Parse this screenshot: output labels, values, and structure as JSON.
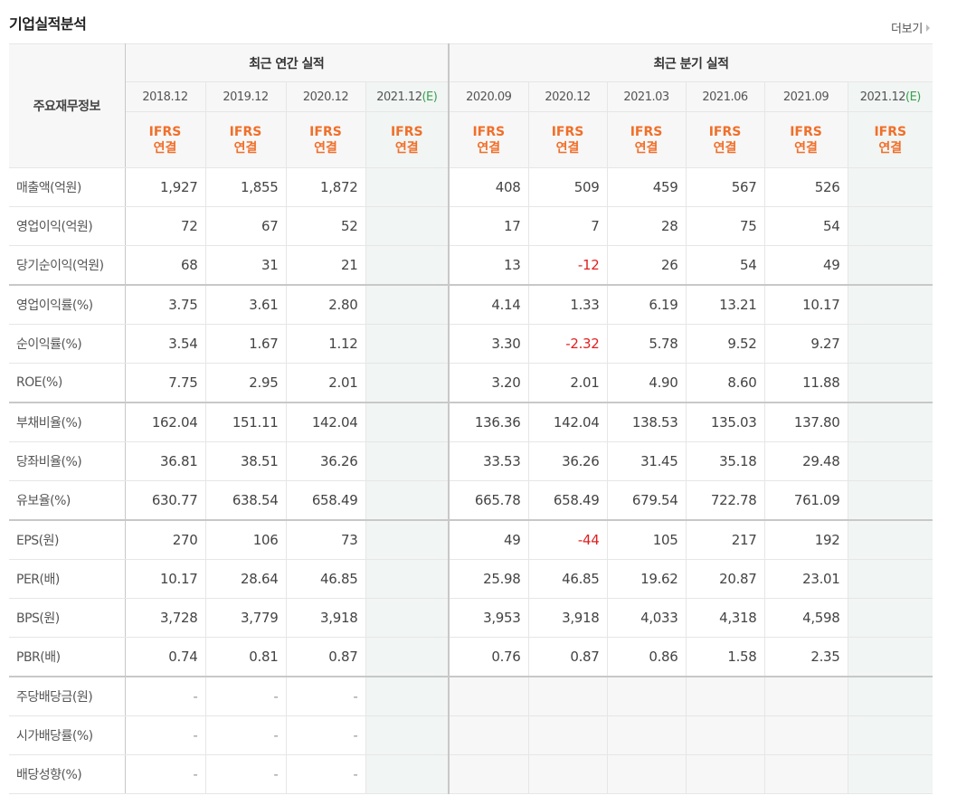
{
  "section": {
    "title": "기업실적분석",
    "more_label": "더보기"
  },
  "table": {
    "row_header_label": "주요재무정보",
    "annual_group_label": "최근 연간 실적",
    "quarterly_group_label": "최근 분기 실적",
    "annual_periods": [
      {
        "date": "2018.12",
        "estimate": ""
      },
      {
        "date": "2019.12",
        "estimate": ""
      },
      {
        "date": "2020.12",
        "estimate": ""
      },
      {
        "date": "2021.12",
        "estimate": "(E)"
      }
    ],
    "quarterly_periods": [
      {
        "date": "2020.09",
        "estimate": ""
      },
      {
        "date": "2020.12",
        "estimate": ""
      },
      {
        "date": "2021.03",
        "estimate": ""
      },
      {
        "date": "2021.06",
        "estimate": ""
      },
      {
        "date": "2021.09",
        "estimate": ""
      },
      {
        "date": "2021.12",
        "estimate": "(E)"
      }
    ],
    "basis_line1": "IFRS",
    "basis_line2": "연결",
    "rows": [
      {
        "label": "매출액(억원)",
        "annual": [
          "1,927",
          "1,855",
          "1,872",
          ""
        ],
        "quarterly": [
          "408",
          "509",
          "459",
          "567",
          "526",
          ""
        ]
      },
      {
        "label": "영업이익(억원)",
        "annual": [
          "72",
          "67",
          "52",
          ""
        ],
        "quarterly": [
          "17",
          "7",
          "28",
          "75",
          "54",
          ""
        ]
      },
      {
        "label": "당기순이익(억원)",
        "annual": [
          "68",
          "31",
          "21",
          ""
        ],
        "quarterly": [
          "13",
          "-12",
          "26",
          "54",
          "49",
          ""
        ]
      },
      {
        "label": "영업이익률(%)",
        "annual": [
          "3.75",
          "3.61",
          "2.80",
          ""
        ],
        "quarterly": [
          "4.14",
          "1.33",
          "6.19",
          "13.21",
          "10.17",
          ""
        ]
      },
      {
        "label": "순이익률(%)",
        "annual": [
          "3.54",
          "1.67",
          "1.12",
          ""
        ],
        "quarterly": [
          "3.30",
          "-2.32",
          "5.78",
          "9.52",
          "9.27",
          ""
        ]
      },
      {
        "label": "ROE(%)",
        "annual": [
          "7.75",
          "2.95",
          "2.01",
          ""
        ],
        "quarterly": [
          "3.20",
          "2.01",
          "4.90",
          "8.60",
          "11.88",
          ""
        ]
      },
      {
        "label": "부채비율(%)",
        "annual": [
          "162.04",
          "151.11",
          "142.04",
          ""
        ],
        "quarterly": [
          "136.36",
          "142.04",
          "138.53",
          "135.03",
          "137.80",
          ""
        ]
      },
      {
        "label": "당좌비율(%)",
        "annual": [
          "36.81",
          "38.51",
          "36.26",
          ""
        ],
        "quarterly": [
          "33.53",
          "36.26",
          "31.45",
          "35.18",
          "29.48",
          ""
        ]
      },
      {
        "label": "유보율(%)",
        "annual": [
          "630.77",
          "638.54",
          "658.49",
          ""
        ],
        "quarterly": [
          "665.78",
          "658.49",
          "679.54",
          "722.78",
          "761.09",
          ""
        ]
      },
      {
        "label": "EPS(원)",
        "annual": [
          "270",
          "106",
          "73",
          ""
        ],
        "quarterly": [
          "49",
          "-44",
          "105",
          "217",
          "192",
          ""
        ]
      },
      {
        "label": "PER(배)",
        "annual": [
          "10.17",
          "28.64",
          "46.85",
          ""
        ],
        "quarterly": [
          "25.98",
          "46.85",
          "19.62",
          "20.87",
          "23.01",
          ""
        ]
      },
      {
        "label": "BPS(원)",
        "annual": [
          "3,728",
          "3,779",
          "3,918",
          ""
        ],
        "quarterly": [
          "3,953",
          "3,918",
          "4,033",
          "4,318",
          "4,598",
          ""
        ]
      },
      {
        "label": "PBR(배)",
        "annual": [
          "0.74",
          "0.81",
          "0.87",
          ""
        ],
        "quarterly": [
          "0.76",
          "0.87",
          "0.86",
          "1.58",
          "2.35",
          ""
        ]
      },
      {
        "label": "주당배당금(원)",
        "annual": [
          "-",
          "-",
          "-",
          ""
        ],
        "quarterly": [
          "",
          "",
          "",
          "",
          "",
          ""
        ]
      },
      {
        "label": "시가배당률(%)",
        "annual": [
          "-",
          "-",
          "-",
          ""
        ],
        "quarterly": [
          "",
          "",
          "",
          "",
          "",
          ""
        ]
      },
      {
        "label": "배당성향(%)",
        "annual": [
          "-",
          "-",
          "-",
          ""
        ],
        "quarterly": [
          "",
          "",
          "",
          "",
          "",
          ""
        ]
      }
    ],
    "group_separators_before_rows": [
      3,
      6,
      9,
      13
    ]
  },
  "colors": {
    "ifrs_orange": "#f06f2a",
    "negative_red": "#e02020",
    "estimate_green": "#3aa050",
    "estimate_column_bg": "#f1f5f3",
    "header_bg": "#f7f7f7"
  }
}
